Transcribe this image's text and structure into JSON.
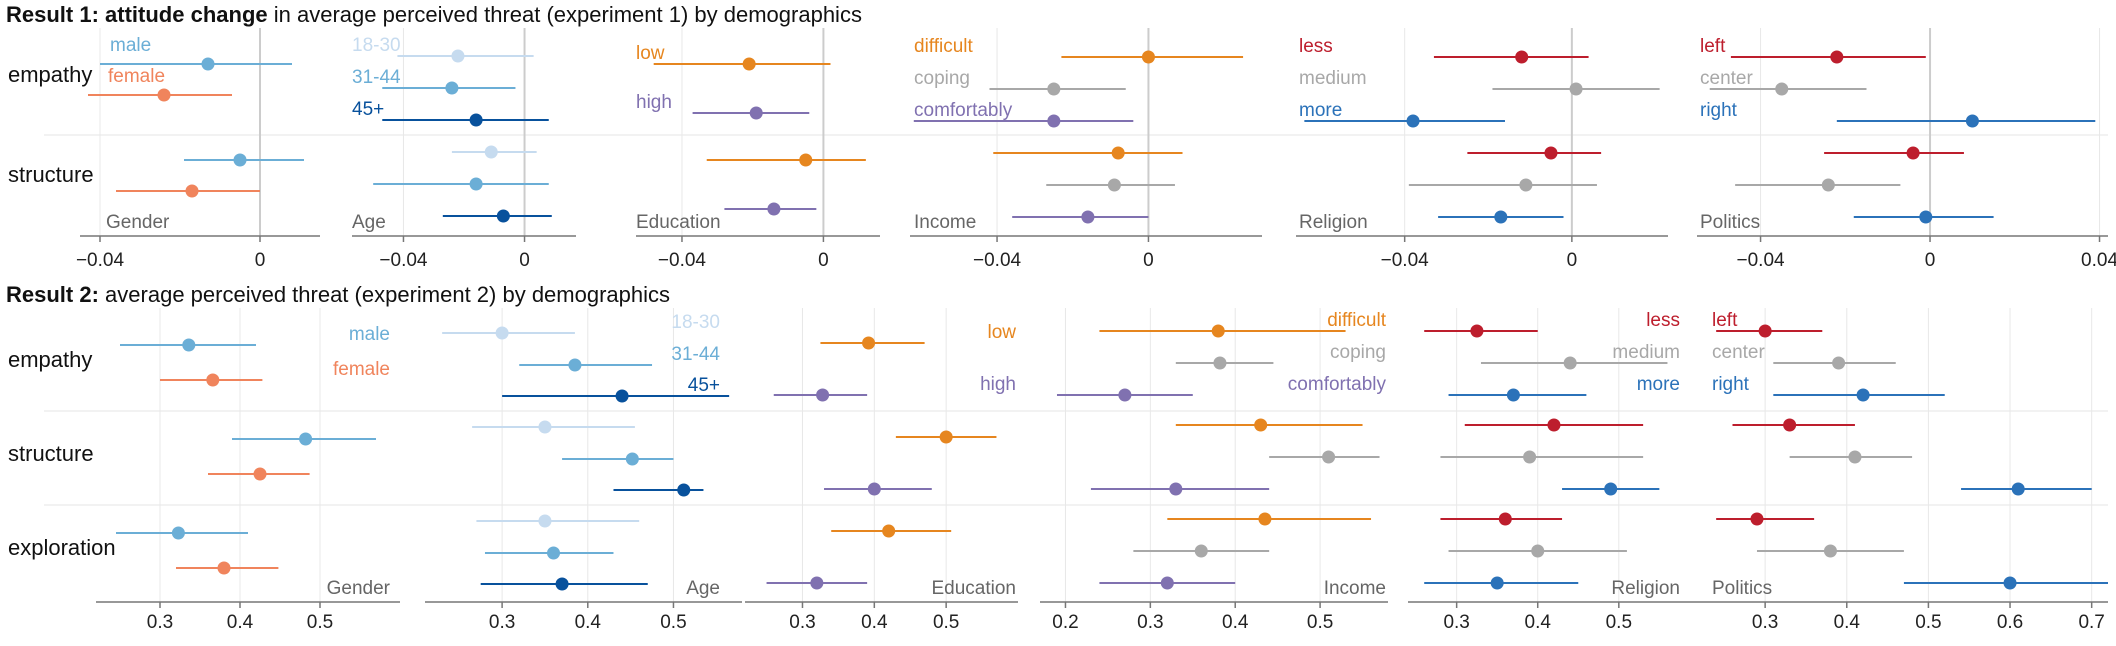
{
  "titles": {
    "result1_prefix": "Result 1:",
    "result1_bold": "attitude change",
    "result1_rest": "in average perceived threat (experiment 1) by demographics",
    "result2_prefix": "Result 2:",
    "result2_rest": "average perceived threat (experiment 2) by demographics"
  },
  "colors": {
    "gender": [
      "#6baed6",
      "#f0845c"
    ],
    "age": [
      "#c6dbef",
      "#6baed6",
      "#08519c"
    ],
    "education": [
      "#e6861f",
      "#8071b0"
    ],
    "income": [
      "#e6861f",
      "#a8a8a8",
      "#8071b0"
    ],
    "religion": [
      "#bd1e2d",
      "#a8a8a8",
      "#2b72b9"
    ],
    "politics": [
      "#bd1e2d",
      "#a8a8a8",
      "#2b72b9"
    ],
    "axis": "#777777",
    "grid": "#e8e8e8",
    "zero_line": "#cccccc"
  },
  "chart_data": [
    {
      "name": "Result 1",
      "type": "scatter",
      "variant": "point-with-interval",
      "rows": [
        "empathy",
        "structure"
      ],
      "panels": [
        {
          "title": "Gender",
          "ticks": [
            -0.04,
            0
          ],
          "xlim": [
            -0.045,
            0.015
          ],
          "groups": [
            "male",
            "female"
          ],
          "data": {
            "empathy": [
              [
                -0.013,
                -0.04,
                0.008
              ],
              [
                -0.024,
                -0.043,
                -0.007
              ]
            ],
            "structure": [
              [
                -0.005,
                -0.019,
                0.011
              ],
              [
                -0.017,
                -0.036,
                0
              ]
            ]
          }
        },
        {
          "title": "Age",
          "ticks": [
            -0.04,
            0
          ],
          "xlim": [
            -0.057,
            0.017
          ],
          "groups": [
            "18-30",
            "31-44",
            "45+"
          ],
          "data": {
            "empathy": [
              [
                -0.022,
                -0.042,
                0.003
              ],
              [
                -0.024,
                -0.047,
                -0.003
              ],
              [
                -0.016,
                -0.047,
                0.008
              ]
            ],
            "structure": [
              [
                -0.011,
                -0.024,
                0.004
              ],
              [
                -0.016,
                -0.05,
                0.008
              ],
              [
                -0.007,
                -0.027,
                0.009
              ]
            ]
          }
        },
        {
          "title": "Education",
          "ticks": [
            -0.04,
            0
          ],
          "xlim": [
            -0.053,
            0.016
          ],
          "groups": [
            "low",
            "high"
          ],
          "data": {
            "empathy": [
              [
                -0.021,
                -0.048,
                0.002
              ],
              [
                -0.019,
                -0.037,
                -0.004
              ]
            ],
            "structure": [
              [
                -0.005,
                -0.033,
                0.012
              ],
              [
                -0.014,
                -0.028,
                -0.002
              ]
            ]
          }
        },
        {
          "title": "Income",
          "ticks": [
            -0.04,
            0
          ],
          "xlim": [
            -0.063,
            0.03
          ],
          "groups": [
            "difficult",
            "coping",
            "comfortably"
          ],
          "data": {
            "empathy": [
              [
                0,
                -0.023,
                0.025
              ],
              [
                -0.025,
                -0.042,
                -0.006
              ],
              [
                -0.025,
                -0.062,
                -0.004
              ]
            ],
            "structure": [
              [
                -0.008,
                -0.041,
                0.009
              ],
              [
                -0.009,
                -0.027,
                0.007
              ],
              [
                -0.016,
                -0.036,
                0
              ]
            ]
          }
        },
        {
          "title": "Religion",
          "ticks": [
            -0.04,
            0
          ],
          "xlim": [
            -0.066,
            0.023
          ],
          "groups": [
            "less",
            "medium",
            "more"
          ],
          "data": {
            "empathy": [
              [
                -0.012,
                -0.033,
                0.004
              ],
              [
                0.001,
                -0.019,
                0.021
              ],
              [
                -0.038,
                -0.064,
                -0.016
              ]
            ],
            "structure": [
              [
                -0.005,
                -0.025,
                0.007
              ],
              [
                -0.011,
                -0.039,
                0.006
              ],
              [
                -0.017,
                -0.032,
                -0.002
              ]
            ]
          }
        },
        {
          "title": "Politics",
          "ticks": [
            -0.04,
            0,
            0.04
          ],
          "xlim": [
            -0.055,
            0.042
          ],
          "groups": [
            "left",
            "center",
            "right"
          ],
          "data": {
            "empathy": [
              [
                -0.022,
                -0.047,
                -0.001
              ],
              [
                -0.035,
                -0.052,
                -0.015
              ],
              [
                0.01,
                -0.022,
                0.039
              ]
            ],
            "structure": [
              [
                -0.004,
                -0.025,
                0.008
              ],
              [
                -0.024,
                -0.046,
                -0.007
              ],
              [
                -0.001,
                -0.018,
                0.015
              ]
            ]
          }
        }
      ]
    },
    {
      "name": "Result 2",
      "type": "scatter",
      "variant": "point-with-interval",
      "rows": [
        "empathy",
        "structure",
        "exploration"
      ],
      "panels": [
        {
          "title": "Gender",
          "ticks": [
            0.3,
            0.4,
            0.5
          ],
          "xlim": [
            0.22,
            0.6
          ],
          "groups": [
            "male",
            "female"
          ],
          "data": {
            "empathy": [
              [
                0.336,
                0.25,
                0.42
              ],
              [
                0.366,
                0.3,
                0.428
              ]
            ],
            "structure": [
              [
                0.482,
                0.39,
                0.57
              ],
              [
                0.425,
                0.36,
                0.487
              ]
            ],
            "exploration": [
              [
                0.323,
                0.245,
                0.41
              ],
              [
                0.38,
                0.32,
                0.448
              ]
            ]
          }
        },
        {
          "title": "Age",
          "ticks": [
            0.3,
            0.4,
            0.5
          ],
          "xlim": [
            0.21,
            0.58
          ],
          "groups": [
            "18-30",
            "31-44",
            "45+"
          ],
          "data": {
            "empathy": [
              [
                0.3,
                0.23,
                0.385
              ],
              [
                0.385,
                0.32,
                0.475
              ],
              [
                0.44,
                0.3,
                0.565
              ]
            ],
            "structure": [
              [
                0.35,
                0.265,
                0.455
              ],
              [
                0.452,
                0.37,
                0.5
              ],
              [
                0.512,
                0.43,
                0.535
              ]
            ],
            "exploration": [
              [
                0.35,
                0.27,
                0.46
              ],
              [
                0.36,
                0.28,
                0.43
              ],
              [
                0.37,
                0.275,
                0.47
              ]
            ]
          }
        },
        {
          "title": "Education",
          "ticks": [
            0.3,
            0.4,
            0.5
          ],
          "xlim": [
            0.22,
            0.6
          ],
          "groups": [
            "low",
            "high"
          ],
          "data": {
            "empathy": [
              [
                0.392,
                0.325,
                0.47
              ],
              [
                0.328,
                0.26,
                0.39
              ]
            ],
            "structure": [
              [
                0.5,
                0.43,
                0.57
              ],
              [
                0.4,
                0.33,
                0.48
              ]
            ],
            "exploration": [
              [
                0.42,
                0.34,
                0.507
              ],
              [
                0.32,
                0.25,
                0.39
              ]
            ]
          }
        },
        {
          "title": "Income",
          "ticks": [
            0.2,
            0.3,
            0.4,
            0.5
          ],
          "xlim": [
            0.17,
            0.58
          ],
          "groups": [
            "difficult",
            "coping",
            "comfortably"
          ],
          "data": {
            "empathy": [
              [
                0.38,
                0.24,
                0.53
              ],
              [
                0.382,
                0.33,
                0.445
              ],
              [
                0.27,
                0.19,
                0.35
              ]
            ],
            "structure": [
              [
                0.43,
                0.33,
                0.55
              ],
              [
                0.51,
                0.44,
                0.57
              ],
              [
                0.33,
                0.23,
                0.44
              ]
            ],
            "exploration": [
              [
                0.435,
                0.32,
                0.56
              ],
              [
                0.36,
                0.28,
                0.44
              ],
              [
                0.32,
                0.24,
                0.4
              ]
            ]
          }
        },
        {
          "title": "Religion",
          "ticks": [
            0.3,
            0.4,
            0.5
          ],
          "xlim": [
            0.24,
            0.61
          ],
          "groups": [
            "less",
            "medium",
            "more"
          ],
          "data": {
            "empathy": [
              [
                0.325,
                0.26,
                0.4
              ],
              [
                0.44,
                0.33,
                0.56
              ],
              [
                0.37,
                0.29,
                0.46
              ]
            ],
            "structure": [
              [
                0.42,
                0.31,
                0.53
              ],
              [
                0.39,
                0.28,
                0.53
              ],
              [
                0.49,
                0.43,
                0.55
              ]
            ],
            "exploration": [
              [
                0.36,
                0.28,
                0.43
              ],
              [
                0.4,
                0.29,
                0.51
              ],
              [
                0.35,
                0.26,
                0.45
              ]
            ]
          }
        },
        {
          "title": "Politics",
          "ticks": [
            0.3,
            0.4,
            0.5,
            0.6,
            0.7
          ],
          "xlim": [
            0.23,
            0.72
          ],
          "groups": [
            "left",
            "center",
            "right"
          ],
          "data": {
            "empathy": [
              [
                0.3,
                0.24,
                0.37
              ],
              [
                0.39,
                0.31,
                0.46
              ],
              [
                0.42,
                0.31,
                0.52
              ]
            ],
            "structure": [
              [
                0.33,
                0.26,
                0.41
              ],
              [
                0.41,
                0.33,
                0.48
              ],
              [
                0.61,
                0.54,
                0.7
              ]
            ],
            "exploration": [
              [
                0.29,
                0.24,
                0.36
              ],
              [
                0.38,
                0.29,
                0.47
              ],
              [
                0.6,
                0.47,
                0.72
              ]
            ]
          }
        }
      ]
    }
  ]
}
